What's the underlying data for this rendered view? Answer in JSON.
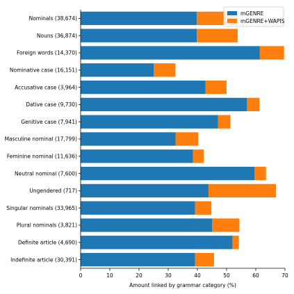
{
  "chart_data": {
    "type": "bar",
    "orientation": "horizontal",
    "stacked": true,
    "categories": [
      "Nominals (38,674)",
      "Nouns (36,874)",
      "Foreign words (14,370)",
      "Nominative case (16,151)",
      "Accusative case (3,964)",
      "Dative case (9,730)",
      "Genitive case (7,941)",
      "Masculine nominal (17,799)",
      "Feminine nominal (11,636)",
      "Neutral nominal (7,600)",
      "Ungendered (717)",
      "Singular nominals (33,965)",
      "Plural nominals (3,821)",
      "Definite article (4,690)",
      "Indefinite article (30,391)"
    ],
    "series": [
      {
        "name": "mGENRE",
        "color": "#1f77b4",
        "values": [
          39.8,
          39.8,
          61.4,
          25.0,
          42.8,
          57.0,
          47.1,
          32.5,
          38.5,
          59.6,
          43.8,
          39.2,
          45.0,
          52.0,
          39.2
        ]
      },
      {
        "name": "mGENRE+WAPIS",
        "color": "#ff7f0e",
        "values": [
          14.0,
          14.0,
          8.3,
          7.5,
          7.2,
          4.3,
          4.2,
          7.8,
          3.7,
          3.9,
          23.1,
          5.6,
          9.4,
          2.2,
          6.5
        ]
      }
    ],
    "xlabel": "Amount linked by grammar category (%)",
    "ylabel": "",
    "title": "",
    "xlim": [
      0,
      70
    ],
    "xticks": [
      "0",
      "10",
      "20",
      "30",
      "40",
      "50",
      "60",
      "70"
    ],
    "grid": false,
    "legend": "top-right"
  }
}
